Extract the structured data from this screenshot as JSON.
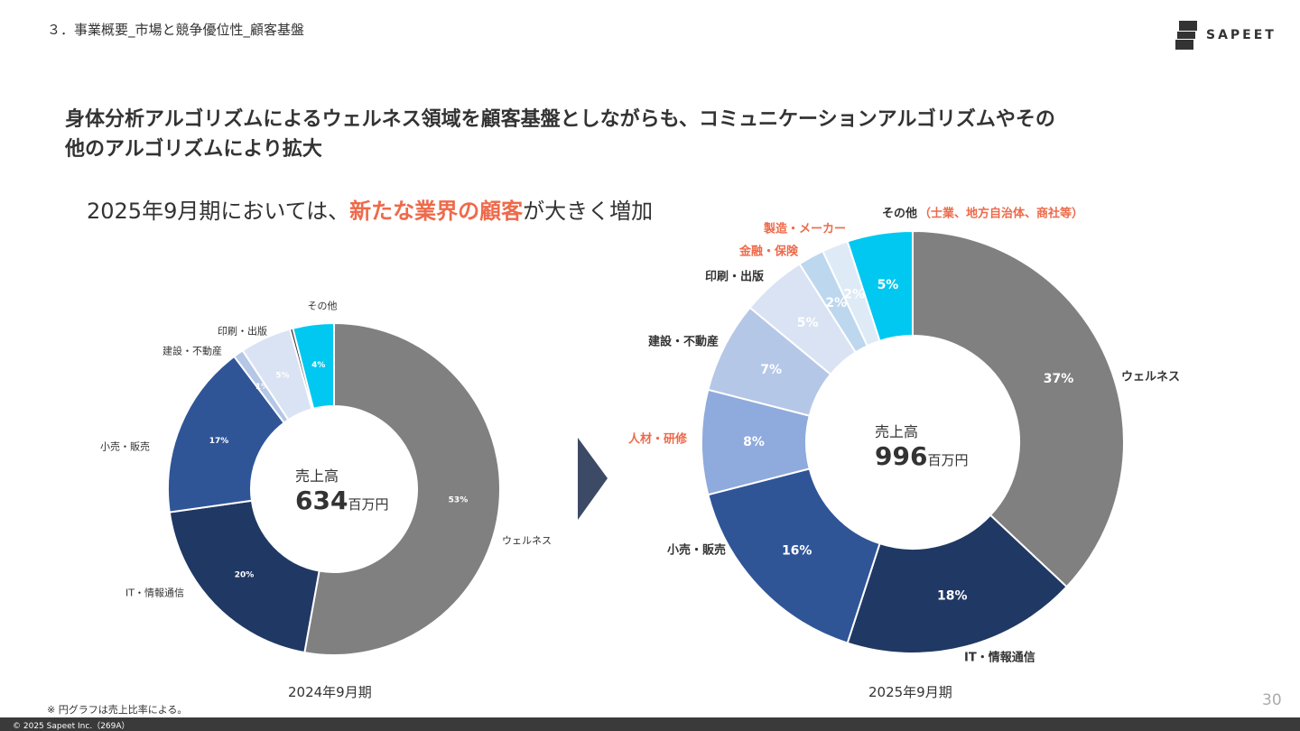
{
  "header": {
    "section": "３．事業概要_市場と競争優位性_顧客基盤",
    "logo_text": "SAPEET"
  },
  "headline": {
    "line1": "身体分析アルゴリズムによるウェルネス領域を顧客基盤としながらも、コミュニケーションアルゴリズムやその",
    "line2": "他のアルゴリズムにより拡大"
  },
  "subhead": {
    "before": "2025年9月期においては、",
    "accent": "新たな業界の顧客",
    "after": "が大きく増加"
  },
  "colors": {
    "accent": "#ee6a4a",
    "arrow": "#3c4a66"
  },
  "chart_data": [
    {
      "type": "donut",
      "period": "2024年9月期",
      "center_label": "売上高",
      "center_value": "634",
      "center_unit": "百万円",
      "series": [
        {
          "category": "ウェルネス",
          "value": 53,
          "label": "53%",
          "color": "#808080"
        },
        {
          "category": "IT・情報通信",
          "value": 20,
          "label": "20%",
          "color": "#203864"
        },
        {
          "category": "小売・販売",
          "value": 17,
          "label": "17%",
          "color": "#2f5597"
        },
        {
          "category": "建設・不動産",
          "value": 1,
          "label": "1%",
          "color": "#b4c7e7"
        },
        {
          "category": "印刷・出版",
          "value": 5,
          "label": "5%",
          "color": "#dae3f3"
        },
        {
          "category": "",
          "value": 0.3,
          "label": "",
          "color": "#3a3a3a"
        },
        {
          "category": "その他",
          "value": 4,
          "label": "4%",
          "color": "#00c8f0"
        }
      ]
    },
    {
      "type": "donut",
      "period": "2025年9月期",
      "center_label": "売上高",
      "center_value": "996",
      "center_unit": "百万円",
      "series": [
        {
          "category": "ウェルネス",
          "value": 37,
          "label": "37%",
          "color": "#808080"
        },
        {
          "category": "IT・情報通信",
          "value": 18,
          "label": "18%",
          "color": "#203864"
        },
        {
          "category": "小売・販売",
          "value": 16,
          "label": "16%",
          "color": "#2f5597"
        },
        {
          "category": "人材・研修",
          "value": 8,
          "label": "8%",
          "color": "#8faadc",
          "highlight": true
        },
        {
          "category": "建設・不動産",
          "value": 7,
          "label": "7%",
          "color": "#b4c7e7"
        },
        {
          "category": "印刷・出版",
          "value": 5,
          "label": "5%",
          "color": "#dae3f3"
        },
        {
          "category": "金融・保険",
          "value": 2,
          "label": "2%",
          "color": "#bdd7ee",
          "highlight": true
        },
        {
          "category": "製造・メーカー",
          "value": 2,
          "label": "2%",
          "color": "#deebf7",
          "highlight": true
        },
        {
          "category": "その他",
          "value": 5,
          "label": "5%",
          "color": "#00c8f0",
          "note": "（士業、地方自治体、商社等）"
        }
      ]
    }
  ],
  "footnote": "※ 円グラフは売上比率による。",
  "page_number": "30",
  "copyright": "© 2025 Sapeet Inc.（269A）"
}
